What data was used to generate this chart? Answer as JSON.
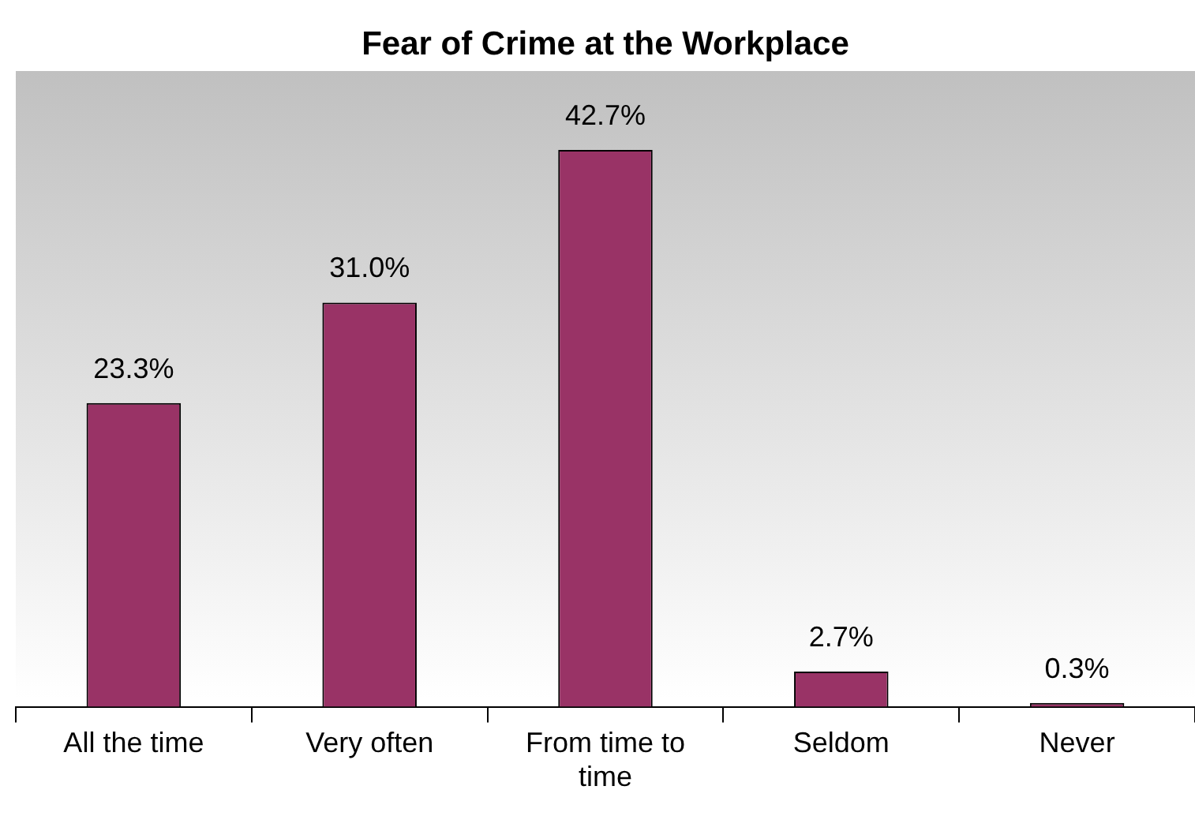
{
  "chart_data": {
    "type": "bar",
    "title": "Fear of Crime at the Workplace",
    "categories": [
      "All the time",
      "Very often",
      "From time to time",
      "Seldom",
      "Never"
    ],
    "values": [
      23.3,
      31.0,
      42.7,
      2.7,
      0.3
    ],
    "value_labels": [
      "23.3%",
      "31.0%",
      "42.7%",
      "2.7%",
      "0.3%"
    ],
    "color": "#993366",
    "grid": false,
    "legend": false
  }
}
